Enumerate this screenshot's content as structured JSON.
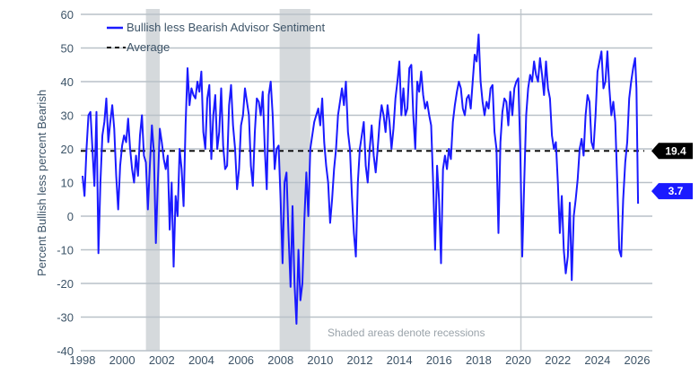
{
  "chart_data": {
    "type": "line",
    "ylabel": "Percent Bullish less percent Bearish",
    "ylim": [
      -40,
      60
    ],
    "xlim": [
      1998,
      2026.5
    ],
    "y_ticks": [
      "60",
      "50",
      "40",
      "30",
      "20",
      "10",
      "0",
      "-10",
      "-20",
      "-30",
      "-40"
    ],
    "x_ticks": [
      "1998",
      "2000",
      "2002",
      "2004",
      "2006",
      "2008",
      "2010",
      "2012",
      "2014",
      "2016",
      "2018",
      "2020",
      "2022",
      "2024",
      "2026"
    ],
    "grid": true,
    "legend_position": "top-left",
    "note": "Shaded areas denote recessions",
    "recessions": [
      [
        2001.2,
        2001.9
      ],
      [
        2007.95,
        2009.5
      ],
      [
        2020.1,
        2020.3
      ]
    ],
    "colors": {
      "series": "#1a1aff",
      "average": "#111111",
      "recession": "#d5d9dc",
      "grid": "#b9c1c8"
    },
    "series": [
      {
        "name": "Bullish less Bearish Advisor Sentiment",
        "last_value_label": "3.7",
        "points": [
          [
            1998.0,
            12
          ],
          [
            1998.1,
            6
          ],
          [
            1998.2,
            20
          ],
          [
            1998.3,
            30
          ],
          [
            1998.4,
            31
          ],
          [
            1998.5,
            20
          ],
          [
            1998.6,
            9
          ],
          [
            1998.7,
            31
          ],
          [
            1998.8,
            -11
          ],
          [
            1998.9,
            10
          ],
          [
            1999.0,
            24
          ],
          [
            1999.1,
            28
          ],
          [
            1999.2,
            35
          ],
          [
            1999.3,
            22
          ],
          [
            1999.4,
            28
          ],
          [
            1999.5,
            33
          ],
          [
            1999.6,
            26
          ],
          [
            1999.7,
            12
          ],
          [
            1999.8,
            2
          ],
          [
            1999.9,
            15
          ],
          [
            2000.0,
            21
          ],
          [
            2000.1,
            24
          ],
          [
            2000.2,
            22
          ],
          [
            2000.3,
            29
          ],
          [
            2000.4,
            20
          ],
          [
            2000.5,
            14
          ],
          [
            2000.6,
            10
          ],
          [
            2000.7,
            18
          ],
          [
            2000.8,
            12
          ],
          [
            2000.9,
            24
          ],
          [
            2001.0,
            30
          ],
          [
            2001.1,
            18
          ],
          [
            2001.2,
            16
          ],
          [
            2001.3,
            2
          ],
          [
            2001.4,
            15
          ],
          [
            2001.5,
            27
          ],
          [
            2001.6,
            19
          ],
          [
            2001.7,
            -8
          ],
          [
            2001.8,
            10
          ],
          [
            2001.9,
            26
          ],
          [
            2002.0,
            22
          ],
          [
            2002.1,
            17
          ],
          [
            2002.2,
            14
          ],
          [
            2002.3,
            18
          ],
          [
            2002.4,
            -4
          ],
          [
            2002.5,
            10
          ],
          [
            2002.6,
            -15
          ],
          [
            2002.7,
            6
          ],
          [
            2002.8,
            0
          ],
          [
            2002.9,
            20
          ],
          [
            2003.0,
            14
          ],
          [
            2003.1,
            3
          ],
          [
            2003.2,
            27
          ],
          [
            2003.3,
            44
          ],
          [
            2003.4,
            33
          ],
          [
            2003.5,
            38
          ],
          [
            2003.6,
            36
          ],
          [
            2003.7,
            35
          ],
          [
            2003.8,
            40
          ],
          [
            2003.9,
            37
          ],
          [
            2004.0,
            43
          ],
          [
            2004.1,
            25
          ],
          [
            2004.2,
            20
          ],
          [
            2004.3,
            35
          ],
          [
            2004.4,
            39
          ],
          [
            2004.5,
            17
          ],
          [
            2004.6,
            30
          ],
          [
            2004.7,
            36
          ],
          [
            2004.8,
            20
          ],
          [
            2004.9,
            25
          ],
          [
            2005.0,
            38
          ],
          [
            2005.1,
            21
          ],
          [
            2005.2,
            14
          ],
          [
            2005.3,
            15
          ],
          [
            2005.4,
            33
          ],
          [
            2005.5,
            39
          ],
          [
            2005.6,
            27
          ],
          [
            2005.7,
            20
          ],
          [
            2005.8,
            8
          ],
          [
            2005.9,
            14
          ],
          [
            2006.0,
            27
          ],
          [
            2006.1,
            30
          ],
          [
            2006.2,
            38
          ],
          [
            2006.3,
            34
          ],
          [
            2006.4,
            30
          ],
          [
            2006.5,
            15
          ],
          [
            2006.6,
            9
          ],
          [
            2006.7,
            25
          ],
          [
            2006.8,
            35
          ],
          [
            2006.9,
            34
          ],
          [
            2007.0,
            30
          ],
          [
            2007.1,
            37
          ],
          [
            2007.2,
            20
          ],
          [
            2007.3,
            8
          ],
          [
            2007.4,
            36
          ],
          [
            2007.5,
            40
          ],
          [
            2007.6,
            30
          ],
          [
            2007.7,
            14
          ],
          [
            2007.8,
            20
          ],
          [
            2007.9,
            21
          ],
          [
            2008.0,
            5
          ],
          [
            2008.1,
            -14
          ],
          [
            2008.2,
            10
          ],
          [
            2008.3,
            13
          ],
          [
            2008.4,
            -5
          ],
          [
            2008.5,
            -21
          ],
          [
            2008.6,
            3
          ],
          [
            2008.7,
            -20
          ],
          [
            2008.8,
            -32
          ],
          [
            2008.9,
            -10
          ],
          [
            2009.0,
            -25
          ],
          [
            2009.1,
            -20
          ],
          [
            2009.2,
            -1
          ],
          [
            2009.3,
            13
          ],
          [
            2009.4,
            0
          ],
          [
            2009.5,
            20
          ],
          [
            2009.6,
            24
          ],
          [
            2009.7,
            28
          ],
          [
            2009.8,
            30
          ],
          [
            2009.9,
            32
          ],
          [
            2010.0,
            27
          ],
          [
            2010.1,
            35
          ],
          [
            2010.2,
            22
          ],
          [
            2010.3,
            15
          ],
          [
            2010.4,
            10
          ],
          [
            2010.5,
            -2
          ],
          [
            2010.6,
            5
          ],
          [
            2010.7,
            14
          ],
          [
            2010.8,
            20
          ],
          [
            2010.9,
            30
          ],
          [
            2011.0,
            34
          ],
          [
            2011.1,
            38
          ],
          [
            2011.2,
            33
          ],
          [
            2011.3,
            40
          ],
          [
            2011.4,
            25
          ],
          [
            2011.5,
            20
          ],
          [
            2011.6,
            6
          ],
          [
            2011.7,
            -5
          ],
          [
            2011.8,
            -12
          ],
          [
            2011.9,
            10
          ],
          [
            2012.0,
            20
          ],
          [
            2012.1,
            24
          ],
          [
            2012.2,
            28
          ],
          [
            2012.3,
            15
          ],
          [
            2012.4,
            10
          ],
          [
            2012.5,
            20
          ],
          [
            2012.6,
            27
          ],
          [
            2012.7,
            18
          ],
          [
            2012.8,
            13
          ],
          [
            2012.9,
            20
          ],
          [
            2013.0,
            28
          ],
          [
            2013.1,
            33
          ],
          [
            2013.2,
            30
          ],
          [
            2013.3,
            25
          ],
          [
            2013.4,
            33
          ],
          [
            2013.5,
            28
          ],
          [
            2013.6,
            20
          ],
          [
            2013.7,
            26
          ],
          [
            2013.8,
            35
          ],
          [
            2013.9,
            40
          ],
          [
            2014.0,
            46
          ],
          [
            2014.1,
            30
          ],
          [
            2014.2,
            38
          ],
          [
            2014.3,
            30
          ],
          [
            2014.4,
            32
          ],
          [
            2014.5,
            44
          ],
          [
            2014.6,
            45
          ],
          [
            2014.7,
            30
          ],
          [
            2014.8,
            20
          ],
          [
            2014.9,
            40
          ],
          [
            2015.0,
            37
          ],
          [
            2015.1,
            43
          ],
          [
            2015.2,
            36
          ],
          [
            2015.3,
            32
          ],
          [
            2015.4,
            34
          ],
          [
            2015.5,
            30
          ],
          [
            2015.6,
            27
          ],
          [
            2015.7,
            10
          ],
          [
            2015.8,
            -10
          ],
          [
            2015.9,
            15
          ],
          [
            2016.0,
            5
          ],
          [
            2016.1,
            -14
          ],
          [
            2016.2,
            14
          ],
          [
            2016.3,
            18
          ],
          [
            2016.4,
            14
          ],
          [
            2016.5,
            20
          ],
          [
            2016.6,
            17
          ],
          [
            2016.7,
            28
          ],
          [
            2016.8,
            33
          ],
          [
            2016.9,
            37
          ],
          [
            2017.0,
            40
          ],
          [
            2017.1,
            38
          ],
          [
            2017.2,
            32
          ],
          [
            2017.3,
            30
          ],
          [
            2017.4,
            35
          ],
          [
            2017.5,
            36
          ],
          [
            2017.6,
            32
          ],
          [
            2017.7,
            40
          ],
          [
            2017.8,
            48
          ],
          [
            2017.9,
            46
          ],
          [
            2018.0,
            54
          ],
          [
            2018.1,
            40
          ],
          [
            2018.2,
            34
          ],
          [
            2018.3,
            30
          ],
          [
            2018.4,
            34
          ],
          [
            2018.5,
            32
          ],
          [
            2018.6,
            38
          ],
          [
            2018.7,
            39
          ],
          [
            2018.8,
            25
          ],
          [
            2018.9,
            20
          ],
          [
            2019.0,
            -5
          ],
          [
            2019.1,
            22
          ],
          [
            2019.2,
            31
          ],
          [
            2019.3,
            35
          ],
          [
            2019.4,
            34
          ],
          [
            2019.5,
            27
          ],
          [
            2019.6,
            37
          ],
          [
            2019.7,
            30
          ],
          [
            2019.8,
            38
          ],
          [
            2019.9,
            40
          ],
          [
            2020.0,
            41
          ],
          [
            2020.1,
            20
          ],
          [
            2020.2,
            -12
          ],
          [
            2020.3,
            10
          ],
          [
            2020.4,
            30
          ],
          [
            2020.5,
            38
          ],
          [
            2020.6,
            42
          ],
          [
            2020.7,
            40
          ],
          [
            2020.8,
            46
          ],
          [
            2020.9,
            42
          ],
          [
            2021.0,
            40
          ],
          [
            2021.1,
            47
          ],
          [
            2021.2,
            42
          ],
          [
            2021.3,
            36
          ],
          [
            2021.4,
            46
          ],
          [
            2021.5,
            38
          ],
          [
            2021.6,
            35
          ],
          [
            2021.7,
            24
          ],
          [
            2021.8,
            20
          ],
          [
            2021.9,
            22
          ],
          [
            2022.0,
            10
          ],
          [
            2022.1,
            -5
          ],
          [
            2022.2,
            6
          ],
          [
            2022.3,
            -10
          ],
          [
            2022.4,
            -17
          ],
          [
            2022.5,
            -12
          ],
          [
            2022.6,
            4
          ],
          [
            2022.7,
            -19
          ],
          [
            2022.8,
            0
          ],
          [
            2022.9,
            5
          ],
          [
            2023.0,
            11
          ],
          [
            2023.1,
            20
          ],
          [
            2023.2,
            23
          ],
          [
            2023.3,
            18
          ],
          [
            2023.4,
            30
          ],
          [
            2023.5,
            36
          ],
          [
            2023.6,
            34
          ],
          [
            2023.7,
            22
          ],
          [
            2023.8,
            20
          ],
          [
            2023.9,
            30
          ],
          [
            2024.0,
            43
          ],
          [
            2024.1,
            46
          ],
          [
            2024.2,
            49
          ],
          [
            2024.3,
            38
          ],
          [
            2024.4,
            40
          ],
          [
            2024.5,
            49
          ],
          [
            2024.6,
            38
          ],
          [
            2024.7,
            30
          ],
          [
            2024.8,
            34
          ],
          [
            2024.9,
            28
          ],
          [
            2025.0,
            10
          ],
          [
            2025.1,
            -10
          ],
          [
            2025.2,
            -12
          ],
          [
            2025.3,
            5
          ],
          [
            2025.4,
            16
          ],
          [
            2025.5,
            22
          ],
          [
            2025.6,
            35
          ],
          [
            2025.7,
            40
          ],
          [
            2025.8,
            44
          ],
          [
            2025.9,
            47
          ],
          [
            2025.97,
            38
          ],
          [
            2026.05,
            3.7
          ]
        ]
      },
      {
        "name": "Average",
        "value": 19.4,
        "value_label": "19.4"
      }
    ]
  }
}
